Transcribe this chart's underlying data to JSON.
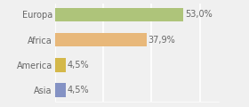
{
  "categories": [
    "Asia",
    "America",
    "Africa",
    "Europa"
  ],
  "values": [
    4.5,
    4.5,
    37.9,
    53.0
  ],
  "bar_colors": [
    "#8492c4",
    "#d4b84a",
    "#e8b87a",
    "#aec47a"
  ],
  "labels": [
    "4,5%",
    "4,5%",
    "37,9%",
    "53,0%"
  ],
  "xlim": [
    0,
    68
  ],
  "background_color": "#f0f0f0",
  "bar_height": 0.55,
  "label_fontsize": 7,
  "tick_fontsize": 7,
  "grid_color": "#ffffff",
  "grid_linewidth": 1.2,
  "tick_color": "#666666"
}
